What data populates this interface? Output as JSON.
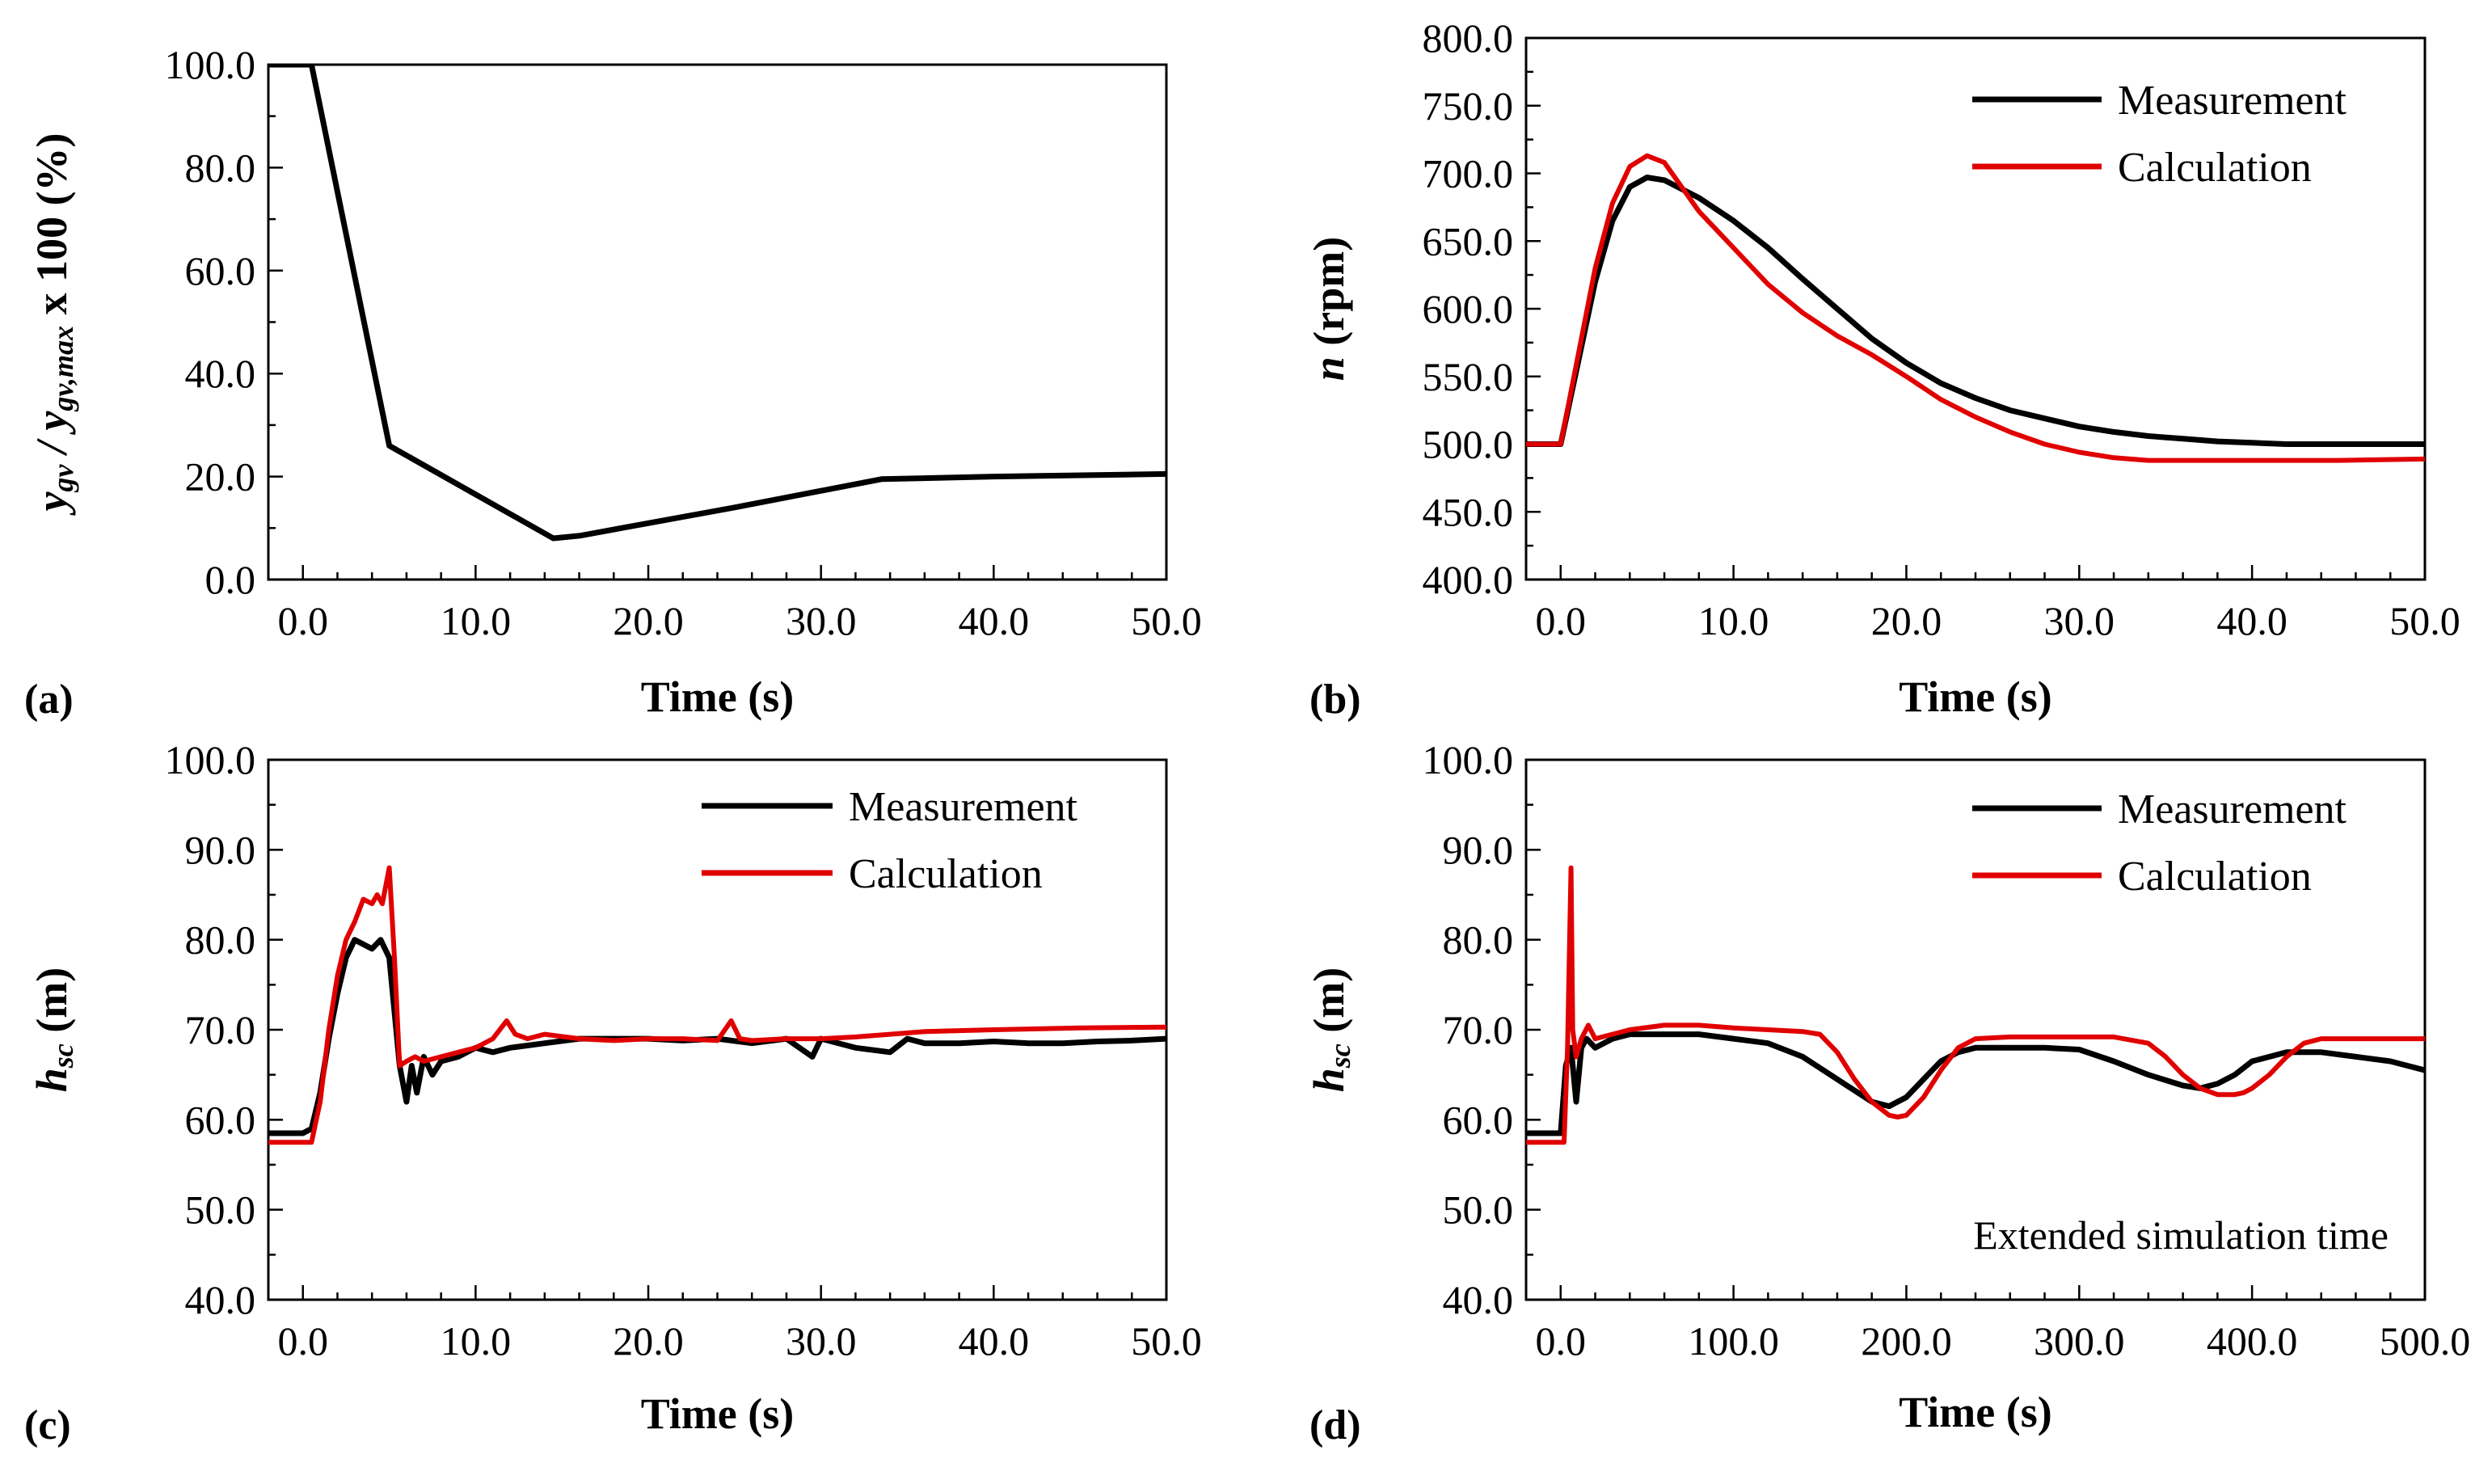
{
  "colors": {
    "measurement": "#000000",
    "calculation": "#e00000",
    "axis": "#000000"
  },
  "chart_data": [
    {
      "type": "line",
      "panel_label": "(a)",
      "title": "",
      "xlabel": "Time (s)",
      "ylabel_parts": {
        "a": "y",
        "a_sub": "gv",
        "b": " / y",
        "b_sub": "gv,max",
        "c": " x 100 (%)"
      },
      "xlim": [
        -2,
        50
      ],
      "ylim": [
        0,
        100
      ],
      "xticks": [
        "0.0",
        "10.0",
        "20.0",
        "30.0",
        "40.0",
        "50.0"
      ],
      "yticks": [
        "0.0",
        "20.0",
        "40.0",
        "60.0",
        "80.0",
        "100.0"
      ],
      "legend": [],
      "annotation": "",
      "series": [
        {
          "name": "Measurement",
          "color_key": "measurement",
          "x": [
            -2,
            0.5,
            5,
            14.5,
            16,
            25,
            33.5,
            40,
            50
          ],
          "y": [
            100,
            100,
            26,
            8,
            8.5,
            14,
            19.5,
            20,
            20.5
          ]
        }
      ]
    },
    {
      "type": "line",
      "panel_label": "(b)",
      "title": "",
      "xlabel": "Time (s)",
      "ylabel_parts": {
        "a": "n",
        "a_sub": "",
        "b": " (rpm)",
        "b_sub": "",
        "c": ""
      },
      "xlim": [
        -2,
        50
      ],
      "ylim": [
        400,
        800
      ],
      "xticks": [
        "0.0",
        "10.0",
        "20.0",
        "30.0",
        "40.0",
        "50.0"
      ],
      "yticks": [
        "400.0",
        "450.0",
        "500.0",
        "550.0",
        "600.0",
        "650.0",
        "700.0",
        "750.0",
        "800.0"
      ],
      "legend": [
        "Measurement",
        "Calculation"
      ],
      "annotation": "",
      "series": [
        {
          "name": "Measurement",
          "color_key": "measurement",
          "x": [
            -2,
            0,
            1,
            2,
            3,
            4,
            5,
            6,
            8,
            10,
            12,
            14,
            16,
            18,
            20,
            22,
            24,
            26,
            28,
            30,
            32,
            34,
            36,
            38,
            40,
            42,
            45,
            50
          ],
          "y": [
            500,
            500,
            560,
            620,
            665,
            690,
            697,
            695,
            682,
            665,
            645,
            622,
            600,
            578,
            560,
            545,
            534,
            525,
            519,
            513,
            509,
            506,
            504,
            502,
            501,
            500,
            500,
            500
          ]
        },
        {
          "name": "Calculation",
          "color_key": "calculation",
          "x": [
            -2,
            0,
            1,
            2,
            3,
            4,
            5,
            6,
            7,
            8,
            10,
            12,
            14,
            16,
            18,
            20,
            22,
            24,
            26,
            28,
            30,
            32,
            34,
            40,
            45,
            50
          ],
          "y": [
            500,
            500,
            565,
            630,
            678,
            705,
            713,
            708,
            690,
            672,
            645,
            618,
            597,
            580,
            566,
            550,
            533,
            520,
            509,
            500,
            494,
            490,
            488,
            488,
            488,
            489
          ]
        }
      ]
    },
    {
      "type": "line",
      "panel_label": "(c)",
      "title": "",
      "xlabel": "Time (s)",
      "ylabel_parts": {
        "a": "h",
        "a_sub": "sc",
        "b": " (m)",
        "b_sub": "",
        "c": ""
      },
      "xlim": [
        -2,
        50
      ],
      "ylim": [
        40,
        100
      ],
      "xticks": [
        "0.0",
        "10.0",
        "20.0",
        "30.0",
        "40.0",
        "50.0"
      ],
      "yticks": [
        "40.0",
        "50.0",
        "60.0",
        "70.0",
        "80.0",
        "90.0",
        "100.0"
      ],
      "legend": [
        "Measurement",
        "Calculation"
      ],
      "annotation": "",
      "series": [
        {
          "name": "Measurement",
          "color_key": "measurement",
          "x": [
            -2,
            0,
            0.5,
            1,
            1.5,
            2,
            2.5,
            3,
            3.5,
            4,
            4.5,
            5,
            5.3,
            5.6,
            6,
            6.3,
            6.6,
            7,
            7.5,
            8,
            9,
            10,
            11,
            12,
            14,
            16,
            18,
            20,
            22,
            24,
            26,
            28,
            29.5,
            30,
            32,
            34,
            35,
            36,
            38,
            40,
            42,
            44,
            46,
            48,
            50
          ],
          "y": [
            58.5,
            58.5,
            59,
            63,
            69,
            74,
            78,
            80,
            79.5,
            79,
            80,
            78,
            72,
            66,
            62,
            66,
            63,
            67,
            65,
            66.5,
            67,
            68,
            67.5,
            68,
            68.5,
            69,
            69,
            69,
            68.8,
            69,
            68.5,
            69,
            67,
            69,
            68,
            67.5,
            69,
            68.5,
            68.5,
            68.7,
            68.5,
            68.5,
            68.7,
            68.8,
            69
          ]
        },
        {
          "name": "Calculation",
          "color_key": "calculation",
          "x": [
            -2,
            0.5,
            1,
            1.5,
            2,
            2.5,
            3,
            3.5,
            4,
            4.3,
            4.6,
            5,
            5.3,
            5.6,
            6,
            6.5,
            7,
            8,
            9,
            10,
            11,
            11.8,
            12.3,
            13,
            14,
            16,
            18,
            20,
            22,
            24,
            24.8,
            25.3,
            26,
            28,
            30,
            32,
            34,
            36,
            40,
            45,
            50
          ],
          "y": [
            57.5,
            57.5,
            62,
            70,
            76,
            80,
            82,
            84.5,
            84,
            85,
            84,
            88,
            78,
            66,
            66.5,
            67,
            66.5,
            67,
            67.5,
            68,
            69,
            71,
            69.5,
            69,
            69.5,
            69,
            68.8,
            69,
            69,
            68.8,
            71,
            69,
            68.8,
            69,
            69,
            69.2,
            69.5,
            69.8,
            70,
            70.2,
            70.3
          ]
        }
      ]
    },
    {
      "type": "line",
      "panel_label": "(d)",
      "title": "",
      "xlabel": "Time (s)",
      "ylabel_parts": {
        "a": "h",
        "a_sub": "sc",
        "b": " (m)",
        "b_sub": "",
        "c": ""
      },
      "xlim": [
        -20,
        500
      ],
      "ylim": [
        40,
        100
      ],
      "xticks": [
        "0.0",
        "100.0",
        "200.0",
        "300.0",
        "400.0",
        "500.0"
      ],
      "yticks": [
        "40.0",
        "50.0",
        "60.0",
        "70.0",
        "80.0",
        "90.0",
        "100.0"
      ],
      "legend": [
        "Measurement",
        "Calculation"
      ],
      "annotation": "Extended simulation time",
      "series": [
        {
          "name": "Measurement",
          "color_key": "measurement",
          "x": [
            -20,
            0,
            3,
            6,
            9,
            12,
            15,
            20,
            30,
            40,
            60,
            80,
            100,
            120,
            140,
            160,
            180,
            190,
            200,
            210,
            220,
            230,
            240,
            260,
            280,
            300,
            320,
            340,
            360,
            370,
            380,
            390,
            400,
            420,
            440,
            460,
            480,
            500
          ],
          "y": [
            58.5,
            58.5,
            66,
            68,
            62,
            68,
            69,
            68,
            69,
            69.5,
            69.5,
            69.5,
            69,
            68.5,
            67,
            64.5,
            62,
            61.5,
            62.5,
            64.5,
            66.5,
            67.5,
            68,
            68,
            68,
            67.8,
            66.5,
            65,
            63.8,
            63.5,
            64,
            65,
            66.5,
            67.5,
            67.5,
            67,
            66.5,
            65.5
          ]
        },
        {
          "name": "Calculation",
          "color_key": "calculation",
          "x": [
            -20,
            2,
            4,
            6,
            7,
            9,
            12,
            16,
            20,
            30,
            40,
            60,
            80,
            100,
            120,
            140,
            150,
            160,
            170,
            180,
            190,
            195,
            200,
            210,
            220,
            230,
            240,
            260,
            280,
            300,
            320,
            340,
            350,
            360,
            370,
            380,
            390,
            395,
            400,
            410,
            420,
            430,
            440,
            460,
            480,
            500
          ],
          "y": [
            57.5,
            57.5,
            68,
            88,
            70,
            67,
            69,
            70.5,
            69,
            69.5,
            70,
            70.5,
            70.5,
            70.2,
            70,
            69.8,
            69.5,
            67.5,
            64.5,
            62,
            60.5,
            60.3,
            60.5,
            62.5,
            65.5,
            68,
            69,
            69.2,
            69.2,
            69.2,
            69.2,
            68.5,
            67,
            65,
            63.5,
            62.8,
            62.8,
            63,
            63.5,
            65,
            67,
            68.5,
            69,
            69,
            69,
            69
          ]
        }
      ]
    }
  ]
}
